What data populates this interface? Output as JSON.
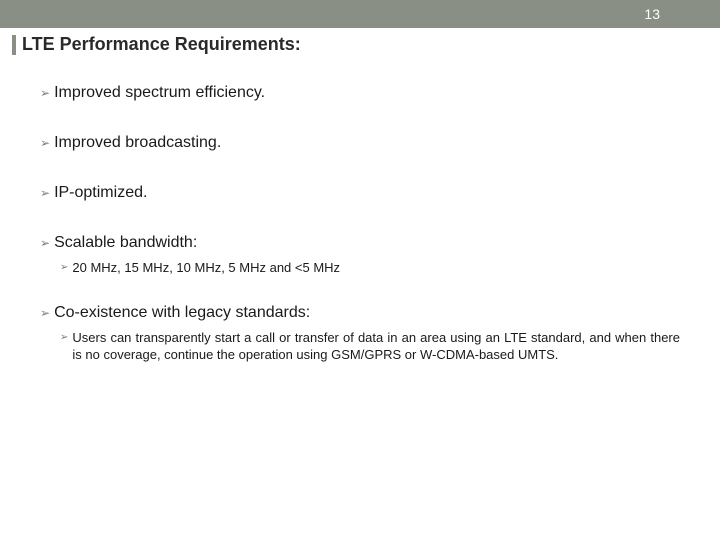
{
  "header": {
    "page_number": "13",
    "bar_color": "#8a8f85"
  },
  "title": "LTE Performance Requirements:",
  "bullets": [
    {
      "level": 1,
      "text": "Improved spectrum efficiency."
    },
    {
      "level": 1,
      "text": "Improved broadcasting."
    },
    {
      "level": 1,
      "text": "IP-optimized."
    },
    {
      "level": 1,
      "text": "Scalable bandwidth:"
    },
    {
      "level": 2,
      "text": "20 MHz, 15 MHz, 10 MHz, 5 MHz and <5 MHz"
    },
    {
      "level": 1,
      "text": "Co-existence with legacy standards:"
    },
    {
      "level": 2,
      "text": "Users can transparently start a call or transfer of data in an area using an LTE standard, and when there is no coverage, continue the operation using GSM/GPRS or W-CDMA-based UMTS."
    }
  ],
  "styling": {
    "background_color": "#ffffff",
    "title_fontsize": 18,
    "l1_fontsize": 16,
    "l2_fontsize": 13,
    "text_color": "#1a1a1a",
    "arrow_color": "#7a7a7a",
    "arrow_glyph": "➢"
  }
}
